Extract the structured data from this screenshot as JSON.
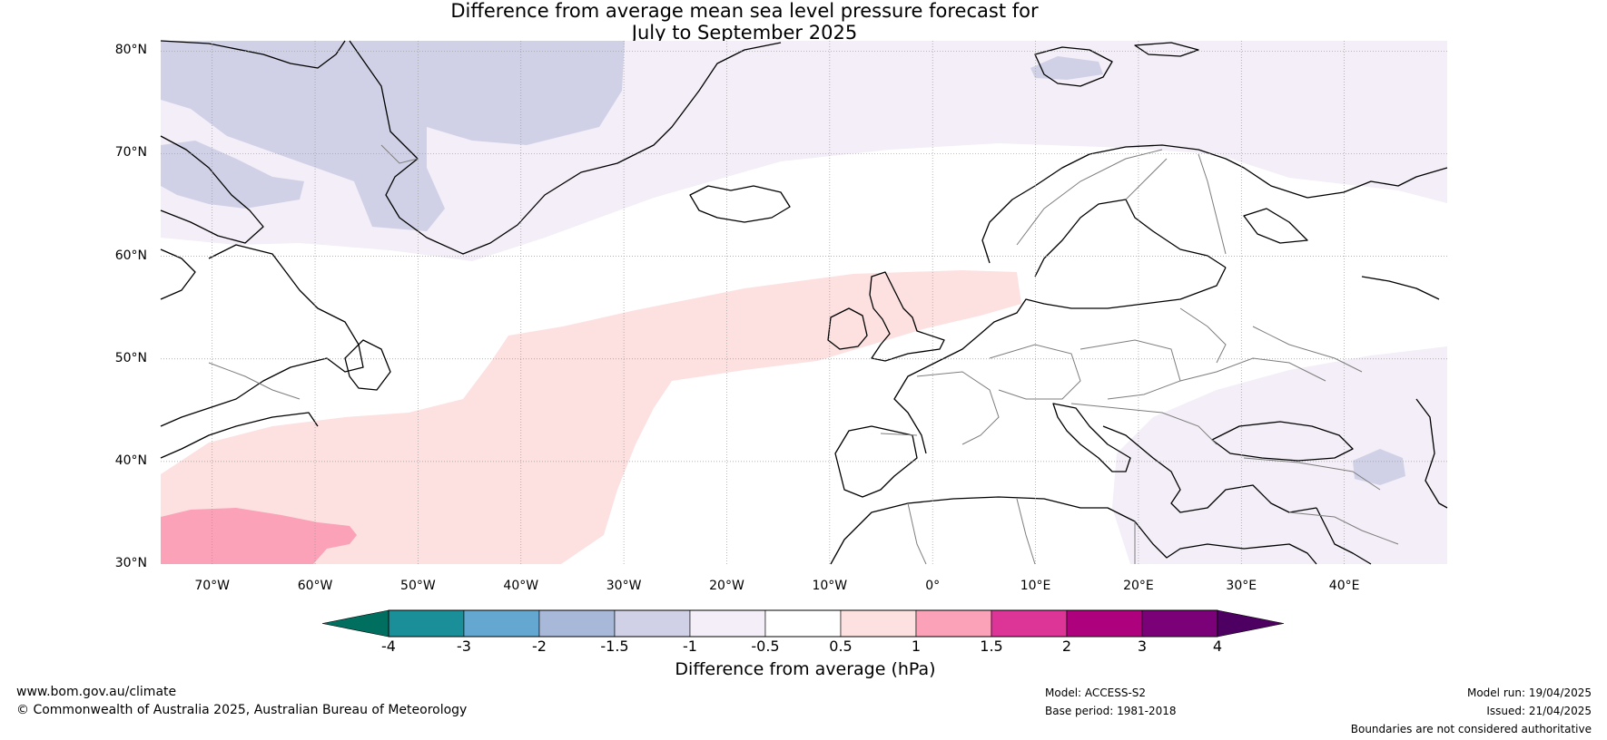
{
  "title": {
    "line1": "Difference from average mean sea level pressure forecast for",
    "line2": "July to September 2025"
  },
  "lat_labels": [
    "80°N",
    "70°N",
    "60°N",
    "50°N",
    "40°N",
    "30°N"
  ],
  "lat_values": [
    80,
    70,
    60,
    50,
    40,
    30
  ],
  "lon_labels": [
    "70°W",
    "60°W",
    "50°W",
    "40°W",
    "30°W",
    "20°W",
    "10°W",
    "0°",
    "10°E",
    "20°E",
    "30°E",
    "40°E"
  ],
  "lon_values": [
    -70,
    -60,
    -50,
    -40,
    -30,
    -20,
    -10,
    0,
    10,
    20,
    30,
    40
  ],
  "map_extent": {
    "lon": [
      -75,
      50
    ],
    "lat": [
      30,
      81
    ]
  },
  "colorbar": {
    "title": "Difference from average (hPa)",
    "ticks": [
      "-4",
      "-3",
      "-2",
      "-1.5",
      "-1",
      "-0.5",
      "0.5",
      "1",
      "1.5",
      "2",
      "3",
      "4"
    ],
    "low_extend_color": "#006f5f",
    "high_extend_color": "#4d0062",
    "colors": [
      "#1a8f99",
      "#64a8d1",
      "#a7b8d9",
      "#d0d1e7",
      "#f3eef7",
      "#ffffff",
      "#fde0e0",
      "#fba1b8",
      "#dd3497",
      "#ae017e",
      "#7a0177"
    ]
  },
  "shading_colors": {
    "neg_1_5": "#d0d1e7",
    "neg_1": "#f3eef7",
    "pos_0_5": "#fde0e0",
    "pos_1": "#fba1b8"
  },
  "footer": {
    "website": "www.bom.gov.au/climate",
    "copyright": "© Commonwealth of Australia 2025, Australian Bureau of Meteorology",
    "model": "Model: ACCESS-S2",
    "base_period": "Base period: 1981-2018",
    "model_run": "Model run: 19/04/2025",
    "issued": "Issued: 21/04/2025",
    "disclaimer": "Boundaries are not considered authoritative"
  }
}
